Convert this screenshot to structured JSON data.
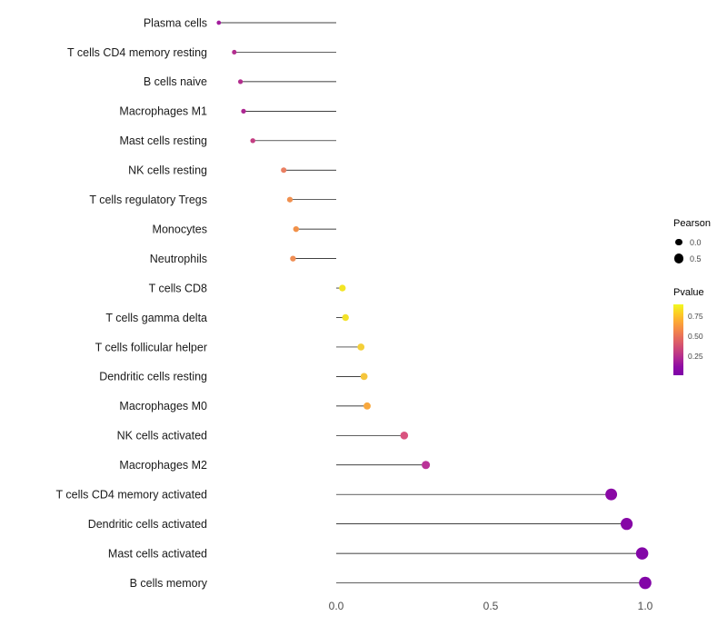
{
  "chart_data": {
    "type": "scatter",
    "subtype": "lollipop",
    "title": "",
    "xlabel": "",
    "ylabel": "",
    "xlim": [
      -0.42,
      1.24
    ],
    "grid": false,
    "legend_position": "right",
    "x_ticks": [
      {
        "value": 0.0,
        "label": "0.0"
      },
      {
        "value": 0.5,
        "label": "0.5"
      },
      {
        "value": 1.0,
        "label": "1.0"
      }
    ],
    "points": [
      {
        "label": "Plasma cells",
        "pearson": -0.38,
        "color": "#a21c9c"
      },
      {
        "label": "T cells CD4 memory resting",
        "pearson": -0.33,
        "color": "#b22d8e"
      },
      {
        "label": "B cells naive",
        "pearson": -0.31,
        "color": "#b22d8e"
      },
      {
        "label": "Macrophages M1",
        "pearson": -0.3,
        "color": "#ad2792"
      },
      {
        "label": "Mast cells resting",
        "pearson": -0.27,
        "color": "#c43e83"
      },
      {
        "label": "NK cells resting",
        "pearson": -0.17,
        "color": "#ea7f62"
      },
      {
        "label": "T cells regulatory Tregs",
        "pearson": -0.15,
        "color": "#f0904f"
      },
      {
        "label": "Monocytes",
        "pearson": -0.13,
        "color": "#f19149"
      },
      {
        "label": "Neutrophils",
        "pearson": -0.14,
        "color": "#f08e54"
      },
      {
        "label": "T cells CD8",
        "pearson": 0.02,
        "color": "#f3e524"
      },
      {
        "label": "T cells gamma delta",
        "pearson": 0.03,
        "color": "#f3e228"
      },
      {
        "label": "T cells follicular helper",
        "pearson": 0.08,
        "color": "#f4cf38"
      },
      {
        "label": "Dendritic cells resting",
        "pearson": 0.09,
        "color": "#f5c53c"
      },
      {
        "label": "Macrophages M0",
        "pearson": 0.1,
        "color": "#f8a83e"
      },
      {
        "label": "NK cells activated",
        "pearson": 0.22,
        "color": "#d9537f"
      },
      {
        "label": "Macrophages M2",
        "pearson": 0.29,
        "color": "#ba3398"
      },
      {
        "label": "T cells CD4 memory activated",
        "pearson": 0.89,
        "color": "#8a09a5"
      },
      {
        "label": "Dendritic cells activated",
        "pearson": 0.94,
        "color": "#8607a6"
      },
      {
        "label": "Mast cells activated",
        "pearson": 0.99,
        "color": "#8306a7"
      },
      {
        "label": "B cells memory",
        "pearson": 1.0,
        "color": "#8205a7"
      }
    ],
    "legend": {
      "size_title": "Pearson",
      "size_items": [
        {
          "value": 0.0,
          "label": "0.0"
        },
        {
          "value": 0.5,
          "label": "0.5"
        }
      ],
      "color_title": "Pvalue",
      "color_ticks": [
        "0.75",
        "0.50",
        "0.25"
      ],
      "color_gradient": [
        "#f0f921",
        "#fcce25",
        "#fca636",
        "#f2844b",
        "#e16462",
        "#cc4778",
        "#b12a90",
        "#8f0da4",
        "#7d03a8"
      ]
    }
  }
}
